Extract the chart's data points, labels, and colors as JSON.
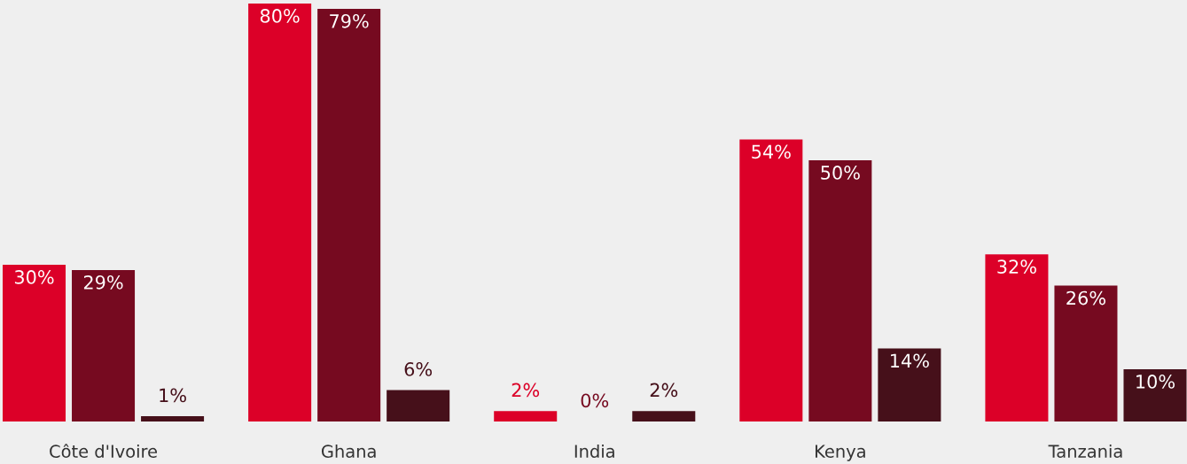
{
  "chart_data": {
    "type": "bar",
    "categories": [
      "Côte d'Ivoire",
      "Ghana",
      "India",
      "Kenya",
      "Tanzania"
    ],
    "series": [
      {
        "color": "#dc0028",
        "values": [
          30,
          80,
          2,
          54,
          32
        ],
        "value_labels": [
          "30%",
          "80%",
          "2%",
          "54%",
          "32%"
        ]
      },
      {
        "color": "#760a20",
        "values": [
          29,
          79,
          0,
          50,
          26
        ],
        "value_labels": [
          "29%",
          "79%",
          "0%",
          "50%",
          "26%"
        ]
      },
      {
        "color": "#46101a",
        "values": [
          1,
          6,
          2,
          14,
          10
        ],
        "value_labels": [
          "1%",
          "6%",
          "2%",
          "14%",
          "10%"
        ]
      }
    ],
    "legend": false
  }
}
